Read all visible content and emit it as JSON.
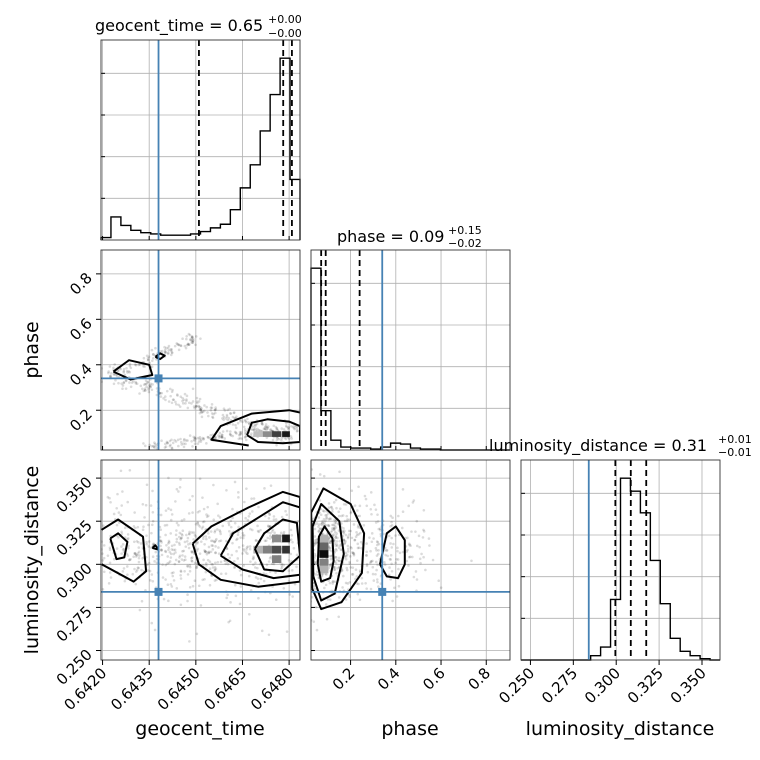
{
  "chart_data": {
    "type": "corner",
    "parameters": [
      "geocent_time",
      "phase",
      "luminosity_distance"
    ],
    "truths": {
      "geocent_time": 0.6438,
      "phase": 0.34,
      "luminosity_distance": 0.284
    },
    "titles": [
      {
        "param": "geocent_time",
        "text": "geocent_time = 0.65",
        "plus": "+0.00",
        "minus": "−0.00"
      },
      {
        "param": "phase",
        "text": "phase = 0.09",
        "plus": "+0.15",
        "minus": "−0.02"
      },
      {
        "param": "luminosity_distance",
        "text": "luminosity_distance = 0.31",
        "plus": "+0.01",
        "minus": "−0.01"
      }
    ],
    "axis_labels": {
      "geocent_time": "geocent_time",
      "phase": "phase",
      "luminosity_distance": "luminosity_distance"
    },
    "ranges": {
      "geocent_time": [
        0.64195,
        0.64835
      ],
      "phase": [
        0.025,
        0.905
      ],
      "luminosity_distance": [
        0.2445,
        0.3605
      ]
    },
    "ticks": {
      "geocent_time": {
        "values": [
          0.642,
          0.6435,
          0.645,
          0.6465,
          0.648
        ],
        "labels": [
          "0.6420",
          "0.6435",
          "0.6450",
          "0.6465",
          "0.6480"
        ]
      },
      "phase": {
        "values": [
          0.2,
          0.4,
          0.6,
          0.8
        ],
        "labels": [
          "0.2",
          "0.4",
          "0.6",
          "0.8"
        ]
      },
      "luminosity_distance": {
        "values": [
          0.25,
          0.275,
          0.3,
          0.325,
          0.35
        ],
        "labels": [
          "0.250",
          "0.275",
          "0.300",
          "0.325",
          "0.350"
        ]
      }
    },
    "histograms": {
      "geocent_time": {
        "edges": [
          0.64195,
          0.64227,
          0.64259,
          0.64291,
          0.64323,
          0.64355,
          0.64387,
          0.64419,
          0.64451,
          0.64483,
          0.64515,
          0.64547,
          0.64579,
          0.64611,
          0.64643,
          0.64675,
          0.64707,
          0.64739,
          0.64771,
          0.64803,
          0.64835
        ],
        "counts": [
          2,
          19,
          12,
          8,
          6,
          5,
          4,
          4,
          4,
          5,
          7,
          10,
          13,
          25,
          43,
          62,
          90,
          120,
          150,
          50
        ],
        "quantiles": [
          0.6451,
          0.64781,
          0.64809
        ]
      },
      "phase": {
        "edges": [
          0.025,
          0.069,
          0.113,
          0.157,
          0.201,
          0.245,
          0.289,
          0.333,
          0.377,
          0.421,
          0.465,
          0.509,
          0.553,
          0.597,
          0.641,
          0.685,
          0.729,
          0.773,
          0.817,
          0.861,
          0.905
        ],
        "counts": [
          185,
          40,
          10,
          3,
          2,
          2,
          1,
          3,
          7,
          6,
          2,
          1,
          1,
          0,
          0,
          0,
          0,
          0,
          0,
          0
        ],
        "quantiles": [
          0.07,
          0.09,
          0.24
        ]
      },
      "luminosity_distance": {
        "edges": [
          0.2445,
          0.2503,
          0.2561,
          0.2619,
          0.2677,
          0.2735,
          0.2793,
          0.2851,
          0.2909,
          0.2967,
          0.3025,
          0.3083,
          0.3141,
          0.3199,
          0.3257,
          0.3315,
          0.3373,
          0.3431,
          0.3489,
          0.3547,
          0.3605
        ],
        "counts": [
          0,
          0,
          0,
          0,
          0,
          0,
          0,
          1,
          3,
          14,
          42,
          39,
          34,
          23,
          13,
          5,
          2,
          1,
          0.3,
          0
        ],
        "quantiles": [
          0.2995,
          0.3085,
          0.3175
        ]
      }
    },
    "density_2d": {
      "phase_vs_geocent_time": {
        "dense_cells": [
          {
            "x": 0.6479,
            "y": 0.095,
            "w": 0.00025,
            "h": 0.025,
            "level": 0.9
          },
          {
            "x": 0.6476,
            "y": 0.095,
            "w": 0.0003,
            "h": 0.025,
            "level": 0.75
          },
          {
            "x": 0.6473,
            "y": 0.095,
            "w": 0.0003,
            "h": 0.025,
            "level": 0.45
          },
          {
            "x": 0.647,
            "y": 0.095,
            "w": 0.0003,
            "h": 0.025,
            "level": 0.25
          }
        ],
        "contours": [
          [
            [
              0.64665,
              0.09
            ],
            [
              0.6468,
              0.145
            ],
            [
              0.6473,
              0.16
            ],
            [
              0.648,
              0.15
            ],
            [
              0.64835,
              0.13
            ],
            [
              0.64835,
              0.06
            ],
            [
              0.6478,
              0.055
            ],
            [
              0.647,
              0.06
            ],
            [
              0.64665,
              0.09
            ]
          ],
          [
            [
              0.6467,
              0.045
            ],
            [
              0.6455,
              0.07
            ],
            [
              0.6458,
              0.13
            ],
            [
              0.6468,
              0.185
            ],
            [
              0.648,
              0.2
            ],
            [
              0.64835,
              0.19
            ]
          ],
          [
            [
              0.64235,
              0.37
            ],
            [
              0.64285,
              0.42
            ],
            [
              0.6435,
              0.4
            ],
            [
              0.6436,
              0.355
            ],
            [
              0.6429,
              0.335
            ],
            [
              0.64235,
              0.37
            ]
          ],
          [
            [
              0.6437,
              0.435
            ],
            [
              0.64385,
              0.45
            ],
            [
              0.644,
              0.44
            ],
            [
              0.64385,
              0.425
            ],
            [
              0.6437,
              0.435
            ]
          ]
        ],
        "scatter_bands": [
          {
            "x0": 0.6421,
            "y0": 0.37,
            "x1": 0.6481,
            "y1": 0.065,
            "spread_x": 0.00012,
            "spread_y": 0.018,
            "n": 260
          },
          {
            "x0": 0.6435,
            "y0": 0.04,
            "x1": 0.6483,
            "y1": 0.13,
            "spread_x": 0.00012,
            "spread_y": 0.012,
            "n": 170
          },
          {
            "x0": 0.6424,
            "y0": 0.36,
            "x1": 0.645,
            "y1": 0.52,
            "spread_x": 0.0001,
            "spread_y": 0.015,
            "n": 110
          }
        ]
      },
      "luminosity_distance_vs_geocent_time": {
        "dense_cells": [
          {
            "x": 0.6479,
            "y": 0.315,
            "w": 0.00025,
            "h": 0.0045,
            "level": 0.9
          },
          {
            "x": 0.6479,
            "y": 0.3085,
            "w": 0.00025,
            "h": 0.0045,
            "level": 0.8
          },
          {
            "x": 0.6476,
            "y": 0.3085,
            "w": 0.0003,
            "h": 0.0045,
            "level": 0.7
          },
          {
            "x": 0.6476,
            "y": 0.303,
            "w": 0.0003,
            "h": 0.0045,
            "level": 0.5
          },
          {
            "x": 0.6473,
            "y": 0.3085,
            "w": 0.0003,
            "h": 0.0045,
            "level": 0.5
          },
          {
            "x": 0.647,
            "y": 0.3085,
            "w": 0.0003,
            "h": 0.0045,
            "level": 0.3
          },
          {
            "x": 0.6476,
            "y": 0.315,
            "w": 0.0003,
            "h": 0.0045,
            "level": 0.45
          }
        ],
        "contours": [
          [
            [
              0.6469,
              0.309
            ],
            [
              0.6472,
              0.318
            ],
            [
              0.6478,
              0.326
            ],
            [
              0.64825,
              0.324
            ],
            [
              0.64835,
              0.305
            ],
            [
              0.6478,
              0.296
            ],
            [
              0.6472,
              0.297
            ],
            [
              0.6469,
              0.309
            ]
          ],
          [
            [
              0.6458,
              0.305
            ],
            [
              0.6462,
              0.318
            ],
            [
              0.647,
              0.327
            ],
            [
              0.6478,
              0.336
            ],
            [
              0.64835,
              0.333
            ],
            [
              0.64835,
              0.294
            ],
            [
              0.6475,
              0.292
            ],
            [
              0.6465,
              0.297
            ],
            [
              0.6458,
              0.305
            ]
          ],
          [
            [
              0.6449,
              0.312
            ],
            [
              0.6455,
              0.322
            ],
            [
              0.6467,
              0.333
            ],
            [
              0.6478,
              0.342
            ],
            [
              0.64835,
              0.339
            ],
            [
              0.64835,
              0.29
            ],
            [
              0.647,
              0.287
            ],
            [
              0.6458,
              0.291
            ],
            [
              0.6451,
              0.3
            ],
            [
              0.6449,
              0.312
            ]
          ],
          [
            [
              0.64225,
              0.315
            ],
            [
              0.6425,
              0.318
            ],
            [
              0.6428,
              0.313
            ],
            [
              0.6427,
              0.304
            ],
            [
              0.64245,
              0.303
            ],
            [
              0.64225,
              0.315
            ]
          ],
          [
            [
              0.64197,
              0.32
            ],
            [
              0.6425,
              0.326
            ],
            [
              0.6433,
              0.316
            ],
            [
              0.6434,
              0.296
            ],
            [
              0.643,
              0.29
            ],
            [
              0.64197,
              0.3
            ]
          ],
          [
            [
              0.6436,
              0.3095
            ],
            [
              0.6437,
              0.311
            ],
            [
              0.6438,
              0.3085
            ],
            [
              0.6436,
              0.3095
            ]
          ]
        ],
        "scatter_bands": [
          {
            "x0": 0.6421,
            "y0": 0.31,
            "x1": 0.6483,
            "y1": 0.31,
            "spread_x": 0.0009,
            "spread_y": 0.012,
            "n": 520
          },
          {
            "x0": 0.6422,
            "y0": 0.3,
            "x1": 0.6482,
            "y1": 0.31,
            "spread_x": 0.0016,
            "spread_y": 0.02,
            "n": 260
          }
        ]
      },
      "luminosity_distance_vs_phase": {
        "dense_cells": [
          {
            "x": 0.082,
            "y": 0.306,
            "w": 0.04,
            "h": 0.0045,
            "level": 0.95
          },
          {
            "x": 0.082,
            "y": 0.3105,
            "w": 0.04,
            "h": 0.0045,
            "level": 0.6
          },
          {
            "x": 0.082,
            "y": 0.301,
            "w": 0.04,
            "h": 0.0045,
            "level": 0.5
          },
          {
            "x": 0.082,
            "y": 0.315,
            "w": 0.04,
            "h": 0.0045,
            "level": 0.3
          },
          {
            "x": 0.082,
            "y": 0.297,
            "w": 0.04,
            "h": 0.0045,
            "level": 0.3
          }
        ],
        "contours": [
          [
            [
              0.055,
              0.3
            ],
            [
              0.06,
              0.316
            ],
            [
              0.085,
              0.322
            ],
            [
              0.12,
              0.315
            ],
            [
              0.125,
              0.302
            ],
            [
              0.11,
              0.292
            ],
            [
              0.07,
              0.29
            ],
            [
              0.055,
              0.3
            ]
          ],
          [
            [
              0.035,
              0.293
            ],
            [
              0.032,
              0.322
            ],
            [
              0.07,
              0.335
            ],
            [
              0.15,
              0.325
            ],
            [
              0.17,
              0.306
            ],
            [
              0.13,
              0.283
            ],
            [
              0.07,
              0.279
            ],
            [
              0.035,
              0.293
            ]
          ],
          [
            [
              0.03,
              0.286
            ],
            [
              0.026,
              0.33
            ],
            [
              0.08,
              0.344
            ],
            [
              0.2,
              0.335
            ],
            [
              0.26,
              0.318
            ],
            [
              0.25,
              0.295
            ],
            [
              0.16,
              0.278
            ],
            [
              0.07,
              0.274
            ],
            [
              0.03,
              0.286
            ]
          ],
          [
            [
              0.33,
              0.3
            ],
            [
              0.36,
              0.318
            ],
            [
              0.4,
              0.322
            ],
            [
              0.44,
              0.314
            ],
            [
              0.44,
              0.3
            ],
            [
              0.41,
              0.292
            ],
            [
              0.36,
              0.293
            ],
            [
              0.33,
              0.3
            ]
          ]
        ],
        "scatter_bands": [
          {
            "x0": 0.04,
            "y0": 0.31,
            "x1": 0.15,
            "y1": 0.31,
            "spread_x": 0.05,
            "spread_y": 0.016,
            "n": 420
          },
          {
            "x0": 0.15,
            "y0": 0.31,
            "x1": 0.45,
            "y1": 0.31,
            "spread_x": 0.09,
            "spread_y": 0.014,
            "n": 240
          }
        ]
      }
    },
    "truth_color": "#4682b4",
    "grid": true
  }
}
